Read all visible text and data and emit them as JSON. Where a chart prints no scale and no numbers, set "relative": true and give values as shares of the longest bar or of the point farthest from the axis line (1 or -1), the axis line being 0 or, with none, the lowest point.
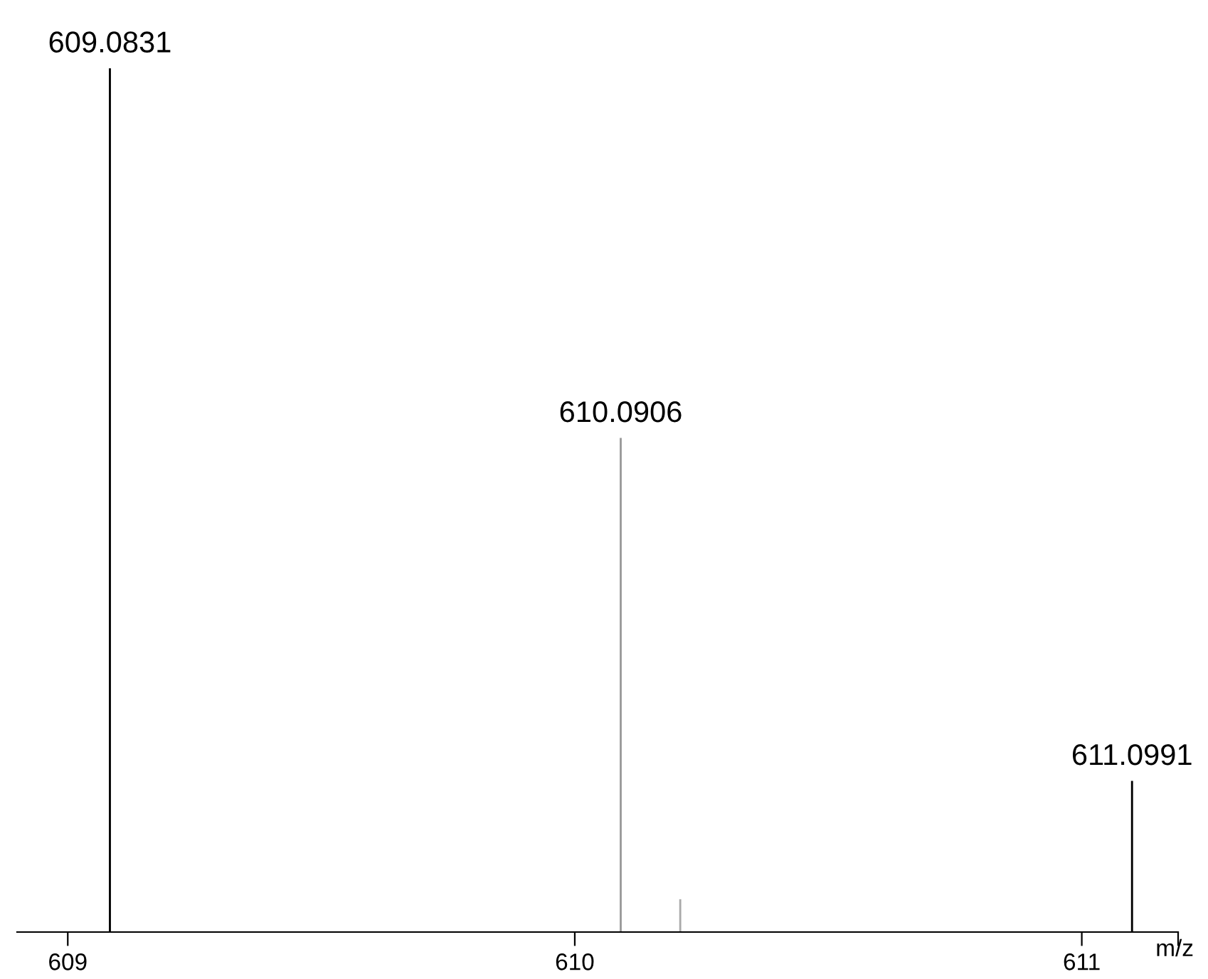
{
  "chart_data": {
    "type": "bar",
    "relative": true,
    "xlabel": "m/z",
    "x": [
      609.0831,
      610.0906,
      610.208,
      611.0991
    ],
    "values": [
      1,
      0.572,
      0.038,
      0.175
    ],
    "colors": [
      "#000000",
      "#999999",
      "#aaaaaa",
      "#000000"
    ],
    "xlim": [
      608.9,
      611.19
    ],
    "xticks": [
      609,
      610,
      611,
      {
        "value": 611.19,
        "label": null
      }
    ],
    "annotations": [
      {
        "text": "609.0831",
        "x": 609.0831,
        "y": 1
      },
      {
        "text": "610.0906",
        "x": 610.0906,
        "y": 0.572
      },
      {
        "text": "611.0991",
        "x": 611.0991,
        "y": 0.175
      }
    ],
    "grid": false,
    "legend": false
  }
}
